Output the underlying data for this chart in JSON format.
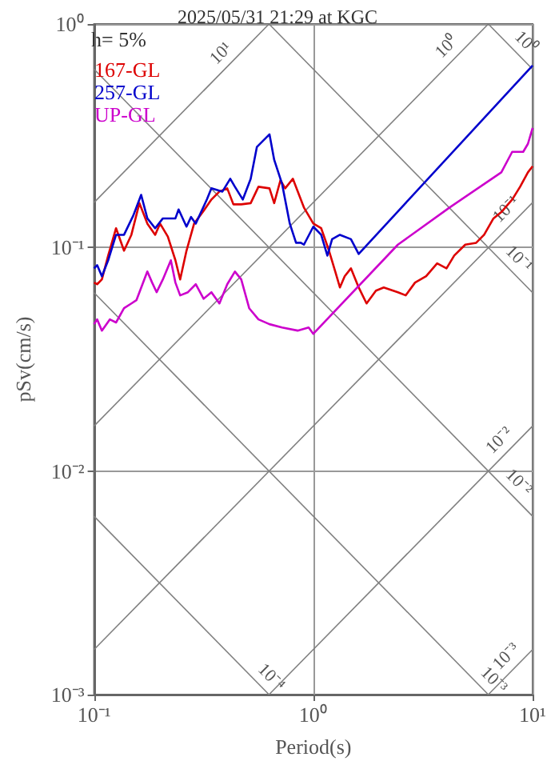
{
  "chart_data": {
    "type": "line",
    "title": "2025/05/31 21:29 at KGC",
    "xlabel": "Period(s)",
    "ylabel": "pSv(cm/s)",
    "log": "xy",
    "grid": true,
    "legend": "top left",
    "xlim": [
      0.1,
      10
    ],
    "ylim": [
      0.001,
      1
    ],
    "xticks": [
      {
        "value": 0.1,
        "label": "10⁻¹"
      },
      {
        "value": 1,
        "label": "10⁰"
      },
      {
        "value": 10,
        "label": "10¹"
      }
    ],
    "yticks": [
      {
        "value": 0.001,
        "label": "10⁻³"
      },
      {
        "value": 0.01,
        "label": "10⁻²"
      },
      {
        "value": 0.1,
        "label": "10⁻¹"
      },
      {
        "value": 1,
        "label": "10⁰"
      }
    ],
    "annotations": [
      "h= 5%",
      {
        "text": "10¹",
        "x": 0.42,
        "y": 0.668
      },
      {
        "text": "10⁰",
        "x": 4.5,
        "y": 0.716
      },
      {
        "text": "10⁰",
        "x": 8.4,
        "y": 0.748
      },
      {
        "text": "10⁻¹",
        "x": 8.4,
        "y": 0.134
      },
      {
        "text": "10⁻¹",
        "x": 7.8,
        "y": 0.0805
      },
      {
        "text": "10⁻²",
        "x": 7.8,
        "y": 0.0124
      },
      {
        "text": "10⁻²",
        "x": 7.8,
        "y": 0.00805
      },
      {
        "text": "10⁻³",
        "x": 8.4,
        "y": 0.00134
      },
      {
        "text": "10⁻³",
        "x": 6.0,
        "y": 0.00105
      },
      {
        "text": "10⁻⁴",
        "x": 0.58,
        "y": 0.00108
      }
    ],
    "series": [
      {
        "color": "#808080",
        "x": [
          6.28,
          10
        ],
        "values": [
          1,
          0.628
        ]
      },
      {
        "color": "#808080",
        "x": [
          0.628,
          10
        ],
        "values": [
          1,
          0.0628
        ]
      },
      {
        "color": "#808080",
        "x": [
          0.1,
          10
        ],
        "values": [
          0.628,
          0.00628
        ]
      },
      {
        "color": "#808080",
        "x": [
          0.1,
          6.28
        ],
        "values": [
          0.0628,
          0.001
        ]
      },
      {
        "color": "#808080",
        "x": [
          0.1,
          0.628
        ],
        "values": [
          0.00628,
          0.001
        ]
      },
      {
        "color": "#808080",
        "x": [
          0.1,
          0.628
        ],
        "values": [
          0.159,
          1
        ]
      },
      {
        "color": "#808080",
        "x": [
          0.1,
          6.28
        ],
        "values": [
          0.0159,
          1
        ]
      },
      {
        "color": "#808080",
        "x": [
          0.1,
          10
        ],
        "values": [
          0.00159,
          0.159
        ]
      },
      {
        "color": "#808080",
        "x": [
          0.628,
          10
        ],
        "values": [
          0.001,
          0.0159
        ]
      },
      {
        "color": "#808080",
        "x": [
          6.28,
          10
        ],
        "values": [
          0.001,
          0.00159
        ]
      },
      {
        "name": "167-GL",
        "color": "#dd0000",
        "x": [
          0.1,
          0.1033,
          0.1086,
          0.116,
          0.126,
          0.137,
          0.148,
          0.161,
          0.175,
          0.19,
          0.2,
          0.217,
          0.235,
          0.247,
          0.264,
          0.286,
          0.316,
          0.343,
          0.373,
          0.405,
          0.432,
          0.469,
          0.518,
          0.562,
          0.631,
          0.663,
          0.708,
          0.744,
          0.807,
          0.906,
          1.0,
          1.086,
          1.179,
          1.259,
          1.322,
          1.39,
          1.484,
          1.61,
          1.749,
          1.93,
          2.095,
          2.43,
          2.64,
          2.91,
          3.27,
          3.67,
          4.05,
          4.39,
          4.93,
          5.53,
          6.01,
          6.63,
          7.2,
          8.07,
          8.77,
          9.52,
          10
        ],
        "values": [
          0.0697,
          0.0685,
          0.072,
          0.092,
          0.122,
          0.0968,
          0.114,
          0.158,
          0.128,
          0.114,
          0.128,
          0.112,
          0.0877,
          0.072,
          0.0968,
          0.128,
          0.146,
          0.164,
          0.178,
          0.184,
          0.156,
          0.156,
          0.158,
          0.187,
          0.184,
          0.158,
          0.2,
          0.184,
          0.203,
          0.151,
          0.128,
          0.122,
          0.0968,
          0.0781,
          0.0663,
          0.0744,
          0.0807,
          0.0663,
          0.0562,
          0.0641,
          0.0663,
          0.0631,
          0.0611,
          0.0697,
          0.0744,
          0.0849,
          0.0807,
          0.092,
          0.103,
          0.105,
          0.114,
          0.135,
          0.144,
          0.164,
          0.187,
          0.217,
          0.231
        ]
      },
      {
        "name": "257-GL",
        "color": "#0000cc",
        "x": [
          0.1,
          0.1033,
          0.1086,
          0.116,
          0.126,
          0.137,
          0.151,
          0.164,
          0.175,
          0.19,
          0.206,
          0.235,
          0.243,
          0.264,
          0.277,
          0.291,
          0.327,
          0.343,
          0.385,
          0.418,
          0.439,
          0.477,
          0.518,
          0.553,
          0.631,
          0.663,
          0.72,
          0.781,
          0.834,
          0.877,
          0.906,
          1.0,
          1.086,
          1.159,
          1.218,
          1.322,
          1.484,
          1.61,
          10
        ],
        "values": [
          0.0807,
          0.0834,
          0.0744,
          0.0877,
          0.114,
          0.114,
          0.139,
          0.172,
          0.135,
          0.122,
          0.135,
          0.135,
          0.148,
          0.124,
          0.137,
          0.128,
          0.164,
          0.184,
          0.178,
          0.203,
          0.187,
          0.164,
          0.203,
          0.282,
          0.321,
          0.247,
          0.193,
          0.128,
          0.105,
          0.105,
          0.103,
          0.124,
          0.114,
          0.092,
          0.109,
          0.114,
          0.109,
          0.0936,
          0.652
        ]
      },
      {
        "name": "UP-GL",
        "color": "#cc00cc",
        "x": [
          0.1,
          0.1033,
          0.1086,
          0.118,
          0.126,
          0.137,
          0.148,
          0.156,
          0.175,
          0.184,
          0.193,
          0.206,
          0.224,
          0.235,
          0.247,
          0.268,
          0.291,
          0.316,
          0.343,
          0.373,
          0.405,
          0.439,
          0.469,
          0.51,
          0.562,
          0.631,
          0.72,
          0.848,
          0.952,
          1.0,
          2.43,
          4.18,
          7.2,
          8.07,
          9.06,
          9.52,
          10
        ],
        "values": [
          0.0454,
          0.0477,
          0.0425,
          0.0477,
          0.0462,
          0.0535,
          0.0562,
          0.0581,
          0.0781,
          0.0697,
          0.0631,
          0.072,
          0.0877,
          0.0697,
          0.0611,
          0.0631,
          0.0685,
          0.059,
          0.0631,
          0.0562,
          0.0685,
          0.0781,
          0.072,
          0.0535,
          0.0477,
          0.0454,
          0.0439,
          0.0425,
          0.0439,
          0.0411,
          0.103,
          0.151,
          0.217,
          0.268,
          0.268,
          0.291,
          0.343
        ]
      }
    ]
  }
}
